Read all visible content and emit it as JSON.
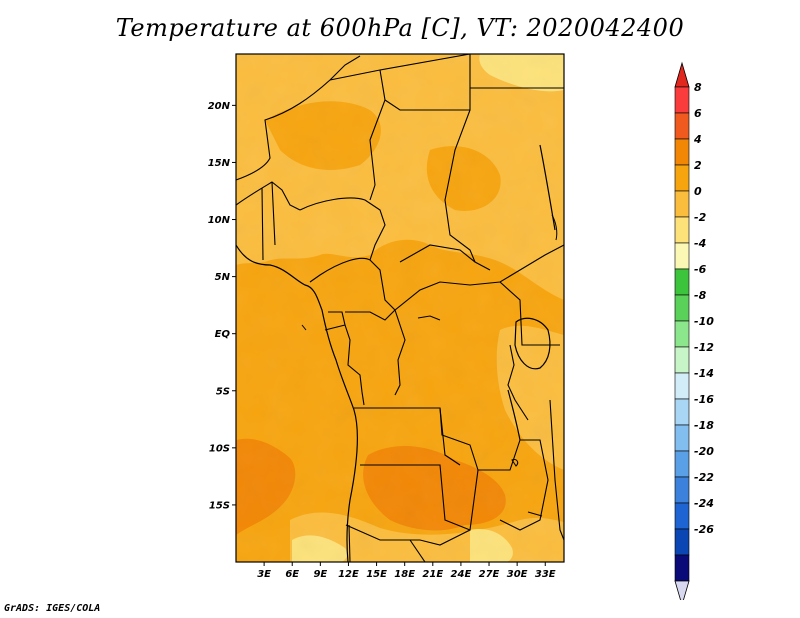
{
  "title": "Temperature at 600hPa [C], VT: 2020042400",
  "credit": "GrADS: IGES/COLA",
  "map": {
    "lon_ticks": [
      "3E",
      "6E",
      "9E",
      "12E",
      "15E",
      "18E",
      "21E",
      "24E",
      "27E",
      "30E",
      "33E"
    ],
    "lat_ticks": [
      "20N",
      "15N",
      "10N",
      "5N",
      "EQ",
      "5S",
      "10S",
      "15S"
    ],
    "lon_range": [
      0,
      35
    ],
    "lat_range": [
      -20,
      24.5
    ]
  },
  "colorbar": {
    "labels": [
      "8",
      "6",
      "4",
      "2",
      "0",
      "-2",
      "-4",
      "-6",
      "-8",
      "-10",
      "-12",
      "-14",
      "-16",
      "-18",
      "-20",
      "-22",
      "-24",
      "-26"
    ],
    "colors": [
      "#fa3c3c",
      "#f05a1e",
      "#f28705",
      "#f7a50f",
      "#fbbd3e",
      "#fde27a",
      "#fbf7b4",
      "#3cc43c",
      "#5ad25a",
      "#8ce68c",
      "#c8f5c8",
      "#d2ecf8",
      "#aad6f5",
      "#82bef0",
      "#5aa0e6",
      "#3c82dc",
      "#1e64d2",
      "#0a46b4",
      "#0a0a78"
    ],
    "top_triangle_color": "#e0281e",
    "bottom_triangle_color": "#d8d8f0"
  }
}
